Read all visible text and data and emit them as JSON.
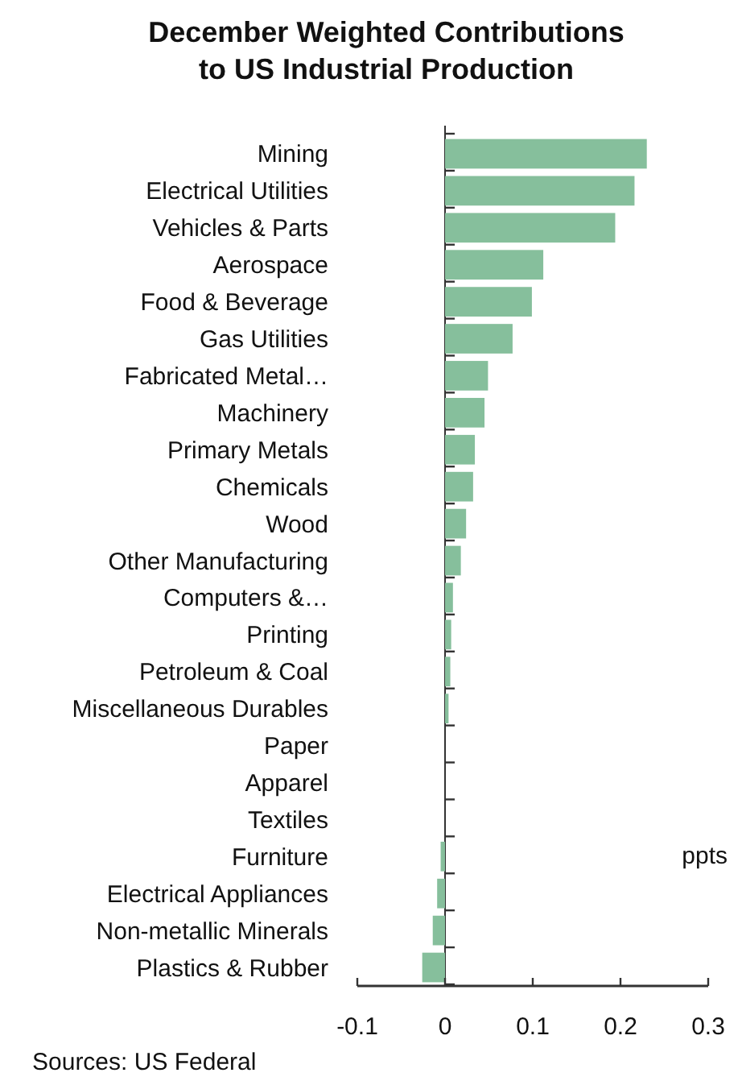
{
  "chart_data": {
    "type": "bar",
    "orientation": "horizontal",
    "title": "December Weighted Contributions\nto US Industrial Production",
    "categories": [
      "Mining",
      "Electrical Utilities",
      "Vehicles & Parts",
      "Aerospace",
      "Food & Beverage",
      "Gas Utilities",
      "Fabricated Metal…",
      "Machinery",
      "Primary Metals",
      "Chemicals",
      "Wood",
      "Other Manufacturing",
      "Computers &…",
      "Printing",
      "Petroleum & Coal",
      "Miscellaneous Durables",
      "Paper",
      "Apparel",
      "Textiles",
      "Furniture",
      "Electrical Appliances",
      "Non-metallic Minerals",
      "Plastics & Rubber"
    ],
    "values": [
      0.23,
      0.216,
      0.194,
      0.112,
      0.099,
      0.077,
      0.049,
      0.045,
      0.034,
      0.032,
      0.024,
      0.018,
      0.009,
      0.007,
      0.006,
      0.004,
      0,
      0,
      0,
      -0.005,
      -0.009,
      -0.014,
      -0.026
    ],
    "color": "#86bf9c",
    "xlim": [
      -0.1,
      0.3
    ],
    "xticks": [
      -0.1,
      0,
      0.1,
      0.2,
      0.3
    ],
    "annotations": [
      "ppts",
      "Sources: US Federal"
    ]
  }
}
